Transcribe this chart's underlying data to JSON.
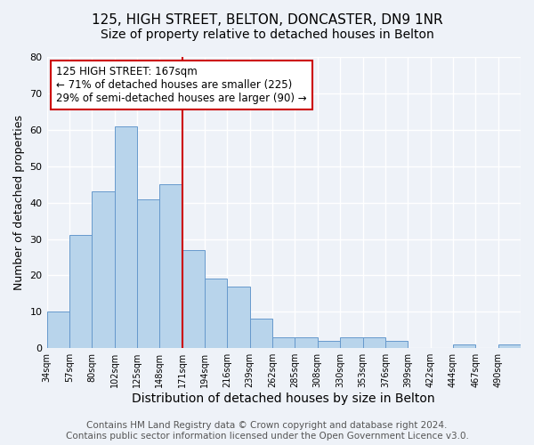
{
  "title1": "125, HIGH STREET, BELTON, DONCASTER, DN9 1NR",
  "title2": "Size of property relative to detached houses in Belton",
  "xlabel": "Distribution of detached houses by size in Belton",
  "ylabel": "Number of detached properties",
  "bin_labels": [
    "34sqm",
    "57sqm",
    "80sqm",
    "102sqm",
    "125sqm",
    "148sqm",
    "171sqm",
    "194sqm",
    "216sqm",
    "239sqm",
    "262sqm",
    "285sqm",
    "308sqm",
    "330sqm",
    "353sqm",
    "376sqm",
    "399sqm",
    "422sqm",
    "444sqm",
    "467sqm",
    "490sqm"
  ],
  "bar_heights": [
    10,
    31,
    43,
    61,
    41,
    45,
    27,
    19,
    17,
    8,
    3,
    3,
    2,
    3,
    3,
    2,
    0,
    0,
    1,
    0,
    1
  ],
  "bar_color": "#b8d4eb",
  "bar_edge_color": "#6699cc",
  "vline_index": 6,
  "vline_color": "#cc0000",
  "annotation_text": "125 HIGH STREET: 167sqm\n← 71% of detached houses are smaller (225)\n29% of semi-detached houses are larger (90) →",
  "annotation_box_color": "#ffffff",
  "annotation_box_edge_color": "#cc0000",
  "ylim": [
    0,
    80
  ],
  "yticks": [
    0,
    10,
    20,
    30,
    40,
    50,
    60,
    70,
    80
  ],
  "footer_text": "Contains HM Land Registry data © Crown copyright and database right 2024.\nContains public sector information licensed under the Open Government Licence v3.0.",
  "background_color": "#eef2f8",
  "grid_color": "#ffffff",
  "title1_fontsize": 11,
  "title2_fontsize": 10,
  "xlabel_fontsize": 10,
  "ylabel_fontsize": 9,
  "footer_fontsize": 7.5
}
